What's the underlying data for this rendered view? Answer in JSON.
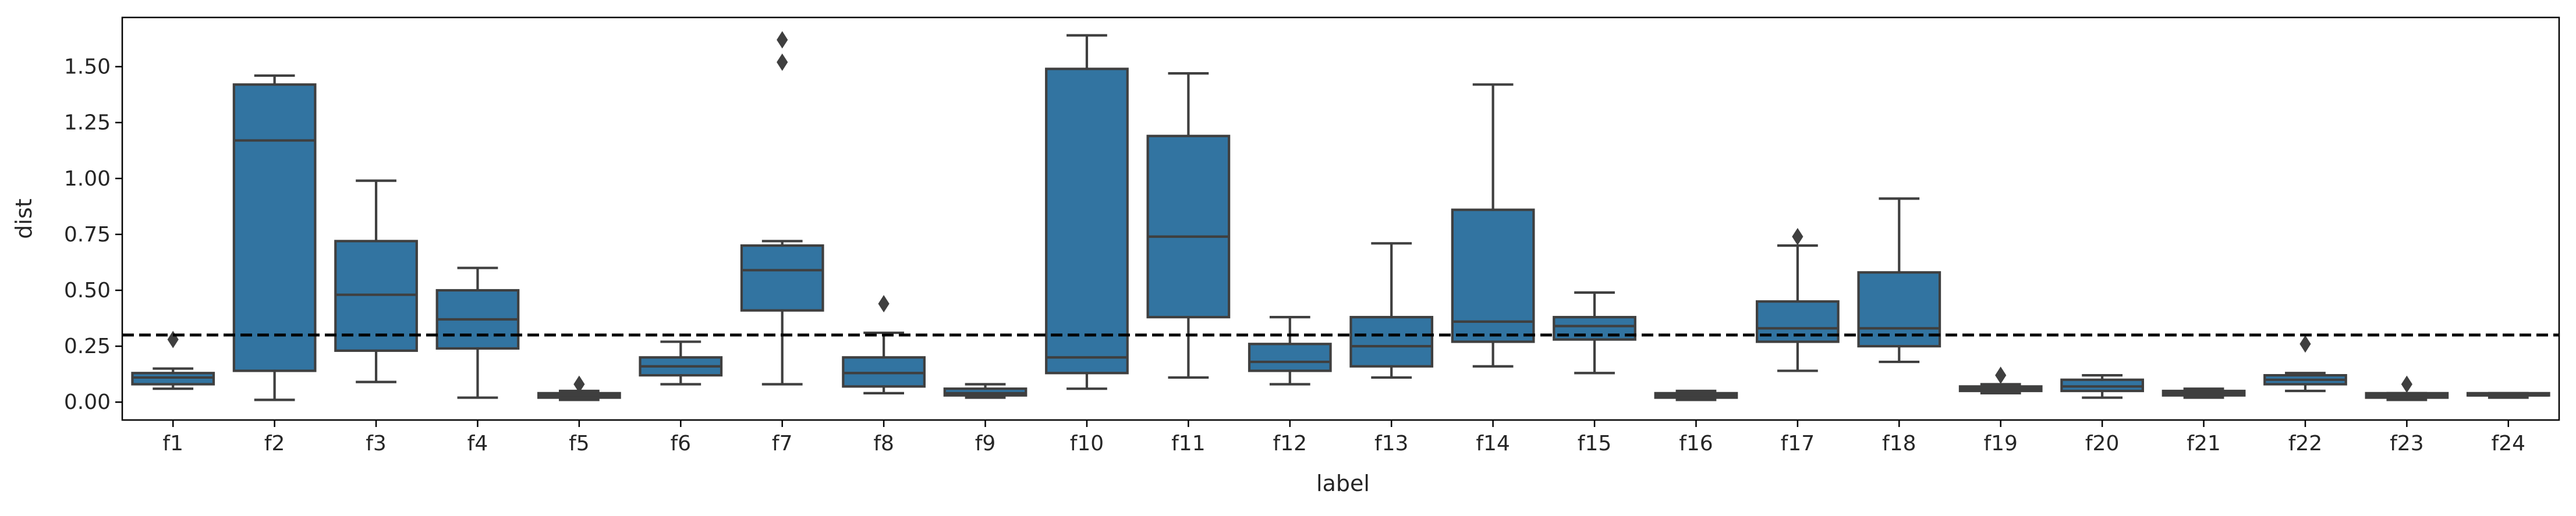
{
  "chart_data": {
    "type": "box",
    "xlabel": "label",
    "ylabel": "dist",
    "categories": [
      "f1",
      "f2",
      "f3",
      "f4",
      "f5",
      "f6",
      "f7",
      "f8",
      "f9",
      "f10",
      "f11",
      "f12",
      "f13",
      "f14",
      "f15",
      "f16",
      "f17",
      "f18",
      "f19",
      "f20",
      "f21",
      "f22",
      "f23",
      "f24"
    ],
    "yticks": [
      "0.00",
      "0.25",
      "0.50",
      "0.75",
      "1.00",
      "1.25",
      "1.50"
    ],
    "ylim": [
      -0.08,
      1.72
    ],
    "reference_line": {
      "y": 0.3,
      "style": "dashed",
      "color": "#000000"
    },
    "box_color": "#3274a1",
    "edge_color": "#3f3f3f",
    "grid": false,
    "boxes": [
      {
        "label": "f1",
        "whisker_low": 0.06,
        "q1": 0.08,
        "median": 0.11,
        "q3": 0.13,
        "whisker_high": 0.15,
        "outliers": [
          0.28
        ]
      },
      {
        "label": "f2",
        "whisker_low": 0.01,
        "q1": 0.14,
        "median": 1.17,
        "q3": 1.42,
        "whisker_high": 1.46,
        "outliers": []
      },
      {
        "label": "f3",
        "whisker_low": 0.09,
        "q1": 0.23,
        "median": 0.48,
        "q3": 0.72,
        "whisker_high": 0.99,
        "outliers": []
      },
      {
        "label": "f4",
        "whisker_low": 0.02,
        "q1": 0.24,
        "median": 0.37,
        "q3": 0.5,
        "whisker_high": 0.6,
        "outliers": []
      },
      {
        "label": "f5",
        "whisker_low": 0.01,
        "q1": 0.02,
        "median": 0.03,
        "q3": 0.04,
        "whisker_high": 0.05,
        "outliers": [
          0.08
        ]
      },
      {
        "label": "f6",
        "whisker_low": 0.08,
        "q1": 0.12,
        "median": 0.16,
        "q3": 0.2,
        "whisker_high": 0.27,
        "outliers": []
      },
      {
        "label": "f7",
        "whisker_low": 0.08,
        "q1": 0.41,
        "median": 0.59,
        "q3": 0.7,
        "whisker_high": 0.72,
        "outliers": [
          1.52,
          1.62
        ]
      },
      {
        "label": "f8",
        "whisker_low": 0.04,
        "q1": 0.07,
        "median": 0.13,
        "q3": 0.2,
        "whisker_high": 0.31,
        "outliers": [
          0.44
        ]
      },
      {
        "label": "f9",
        "whisker_low": 0.02,
        "q1": 0.03,
        "median": 0.04,
        "q3": 0.06,
        "whisker_high": 0.08,
        "outliers": []
      },
      {
        "label": "f10",
        "whisker_low": 0.06,
        "q1": 0.13,
        "median": 0.2,
        "q3": 1.49,
        "whisker_high": 1.64,
        "outliers": []
      },
      {
        "label": "f11",
        "whisker_low": 0.11,
        "q1": 0.38,
        "median": 0.74,
        "q3": 1.19,
        "whisker_high": 1.47,
        "outliers": []
      },
      {
        "label": "f12",
        "whisker_low": 0.08,
        "q1": 0.14,
        "median": 0.18,
        "q3": 0.26,
        "whisker_high": 0.38,
        "outliers": []
      },
      {
        "label": "f13",
        "whisker_low": 0.11,
        "q1": 0.16,
        "median": 0.25,
        "q3": 0.38,
        "whisker_high": 0.71,
        "outliers": []
      },
      {
        "label": "f14",
        "whisker_low": 0.16,
        "q1": 0.27,
        "median": 0.36,
        "q3": 0.86,
        "whisker_high": 1.42,
        "outliers": []
      },
      {
        "label": "f15",
        "whisker_low": 0.13,
        "q1": 0.28,
        "median": 0.34,
        "q3": 0.38,
        "whisker_high": 0.49,
        "outliers": []
      },
      {
        "label": "f16",
        "whisker_low": 0.01,
        "q1": 0.02,
        "median": 0.03,
        "q3": 0.04,
        "whisker_high": 0.05,
        "outliers": []
      },
      {
        "label": "f17",
        "whisker_low": 0.14,
        "q1": 0.27,
        "median": 0.33,
        "q3": 0.45,
        "whisker_high": 0.7,
        "outliers": [
          0.74
        ]
      },
      {
        "label": "f18",
        "whisker_low": 0.18,
        "q1": 0.25,
        "median": 0.33,
        "q3": 0.58,
        "whisker_high": 0.91,
        "outliers": []
      },
      {
        "label": "f19",
        "whisker_low": 0.04,
        "q1": 0.05,
        "median": 0.06,
        "q3": 0.07,
        "whisker_high": 0.08,
        "outliers": [
          0.12
        ]
      },
      {
        "label": "f20",
        "whisker_low": 0.02,
        "q1": 0.05,
        "median": 0.07,
        "q3": 0.1,
        "whisker_high": 0.12,
        "outliers": []
      },
      {
        "label": "f21",
        "whisker_low": 0.02,
        "q1": 0.03,
        "median": 0.04,
        "q3": 0.05,
        "whisker_high": 0.06,
        "outliers": []
      },
      {
        "label": "f22",
        "whisker_low": 0.05,
        "q1": 0.08,
        "median": 0.1,
        "q3": 0.12,
        "whisker_high": 0.13,
        "outliers": [
          0.26
        ]
      },
      {
        "label": "f23",
        "whisker_low": 0.01,
        "q1": 0.02,
        "median": 0.03,
        "q3": 0.04,
        "whisker_high": 0.04,
        "outliers": [
          0.08
        ]
      },
      {
        "label": "f24",
        "whisker_low": 0.02,
        "q1": 0.03,
        "median": 0.03,
        "q3": 0.04,
        "whisker_high": 0.04,
        "outliers": []
      }
    ]
  }
}
